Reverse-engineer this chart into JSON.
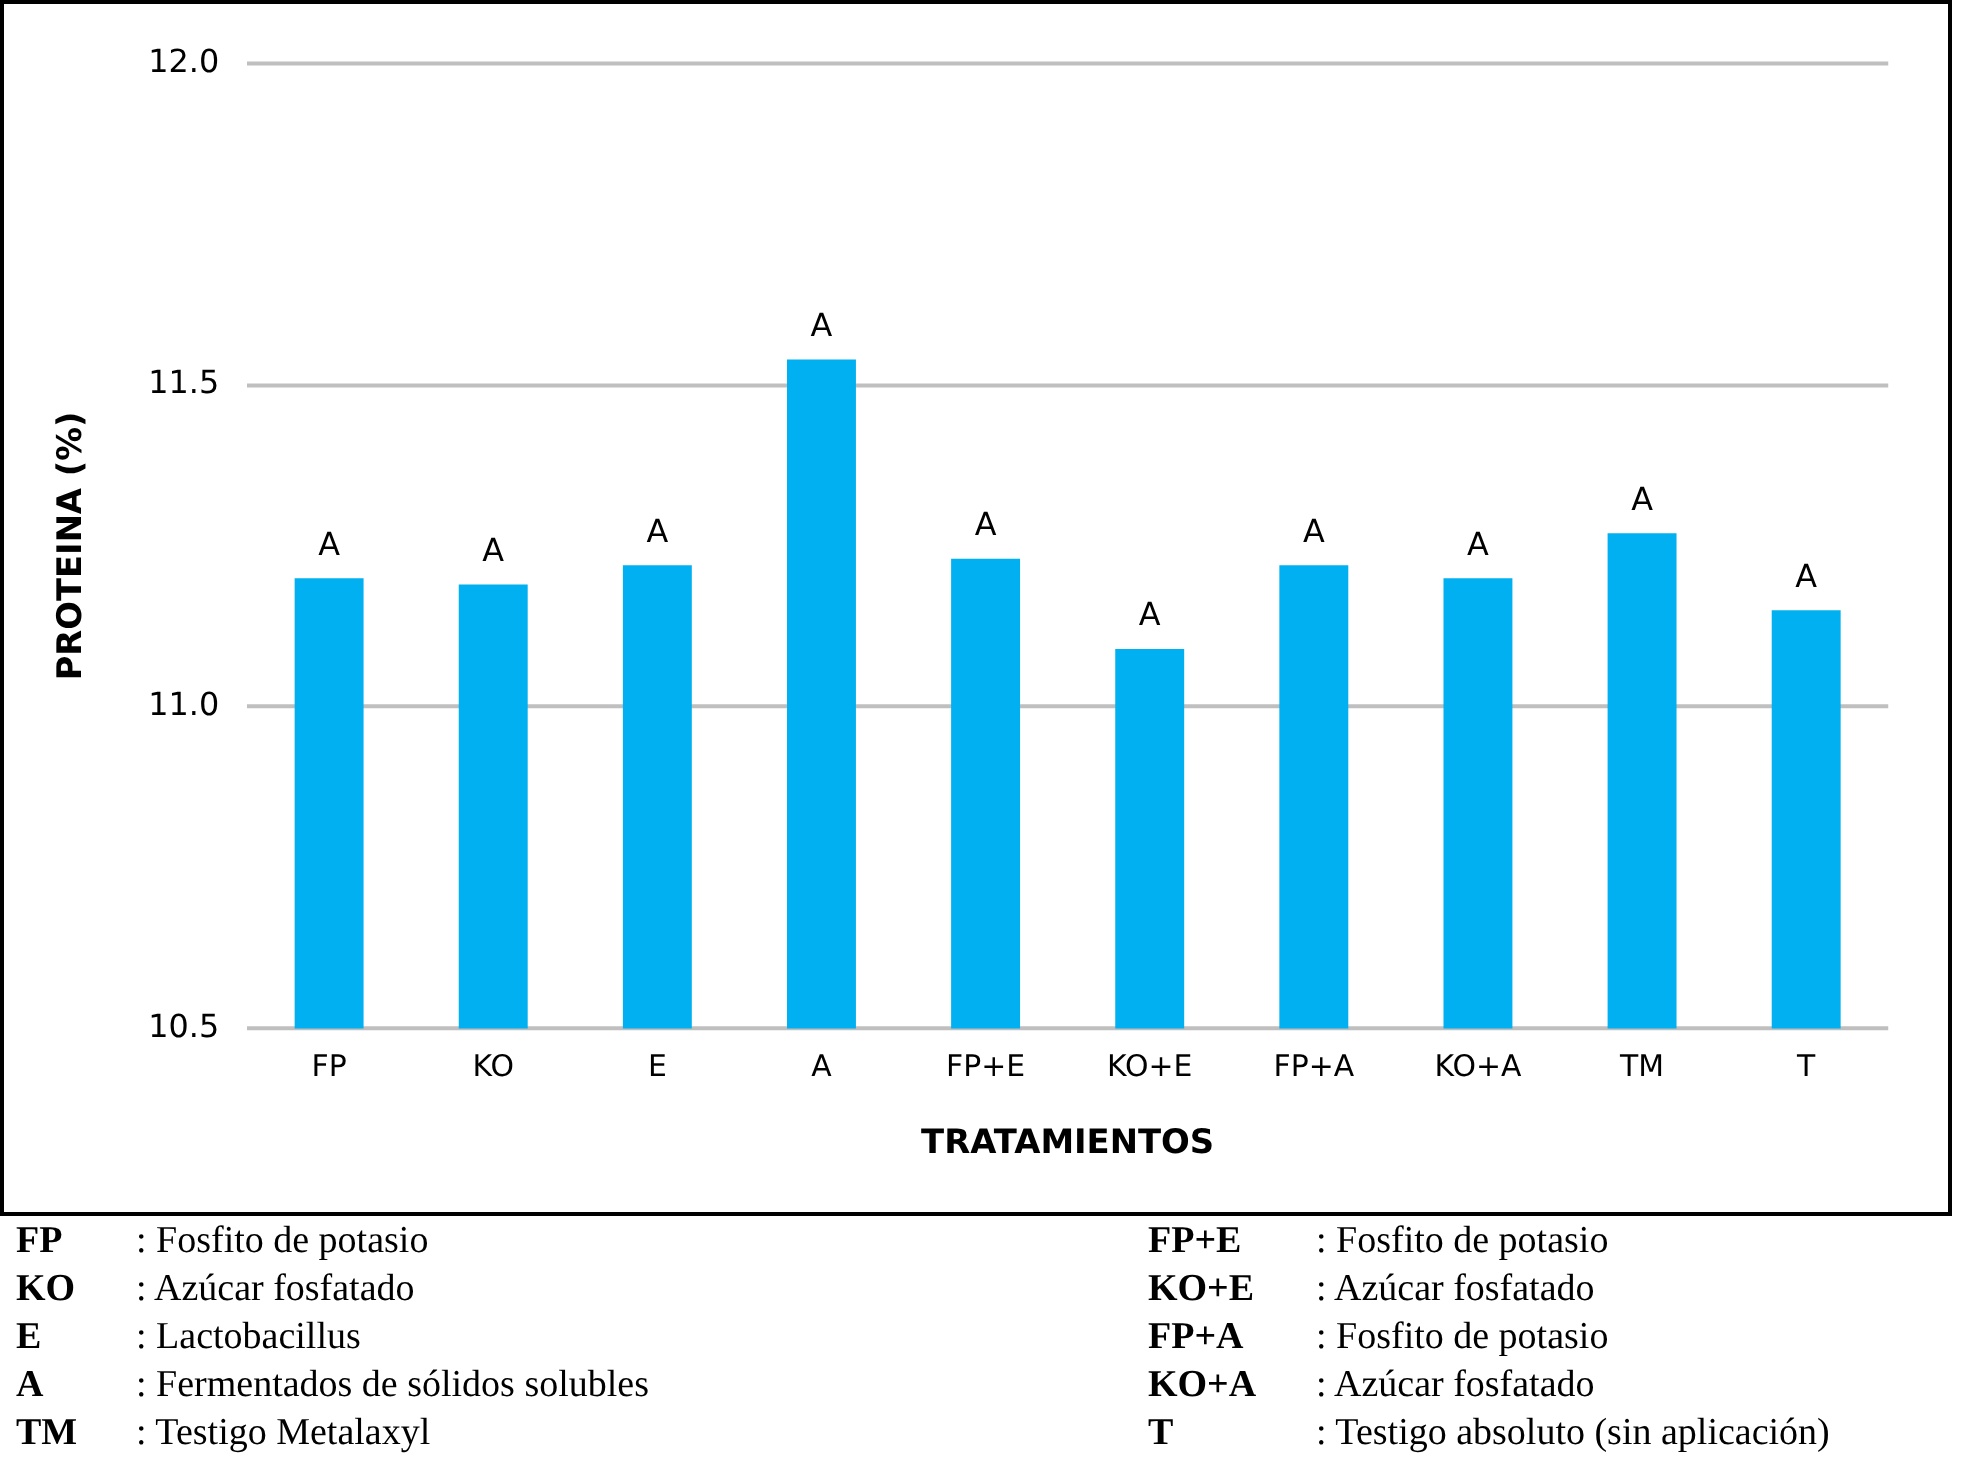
{
  "chart_data": {
    "type": "bar",
    "xlabel": "TRATAMIENTOS",
    "ylabel": "PROTEINA (%)",
    "categories": [
      "FP",
      "KO",
      "E",
      "A",
      "FP+E",
      "KO+E",
      "FP+A",
      "KO+A",
      "TM",
      "T"
    ],
    "values": [
      11.2,
      11.19,
      11.22,
      11.54,
      11.23,
      11.09,
      11.22,
      11.2,
      11.27,
      11.15
    ],
    "value_labels": [
      "A",
      "A",
      "A",
      "A",
      "A",
      "A",
      "A",
      "A",
      "A",
      "A"
    ],
    "color": "#00b0f0",
    "ylim": [
      10.5,
      12.0
    ],
    "yticks": [
      10.5,
      {
        "value": 11,
        "label": "11.0"
      },
      11.5,
      {
        "value": 12,
        "label": "12.0"
      }
    ],
    "grid": "y",
    "legend": false,
    "annotations": [
      "FP : Fosfito de potasio",
      "KO : Azúcar fosfatado",
      "E : Lactobacillus",
      "A : Fermentados de sólidos solubles",
      "TM : Testigo Metalaxyl",
      "FP+E : Fosfito de potasio",
      "KO+E : Azúcar fosfatado",
      "FP+A : Fosfito de potasio",
      "KO+A : Azúcar fosfatado",
      "T : Testigo absoluto (sin aplicación)"
    ]
  }
}
